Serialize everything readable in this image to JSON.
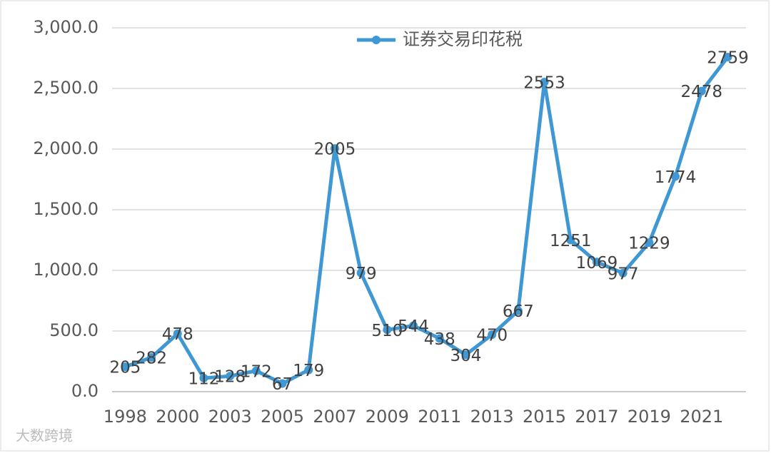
{
  "chart_data": {
    "type": "line",
    "categories": [
      "1998",
      null,
      "2000",
      null,
      "2003",
      null,
      "2005",
      null,
      "2007",
      null,
      "2009",
      null,
      "2011",
      null,
      "2013",
      null,
      "2015",
      null,
      "2017",
      null,
      "2019",
      null,
      "2021",
      null
    ],
    "series": [
      {
        "name": "证券交易印花税",
        "color": "#3f97d4",
        "values": [
          205,
          282,
          478,
          112,
          128,
          172,
          67,
          179,
          2005,
          979,
          510,
          544,
          438,
          304,
          470,
          667,
          2553,
          1251,
          1069,
          977,
          1229,
          1774,
          2478,
          2759
        ]
      }
    ],
    "ylim": [
      0,
      3000
    ],
    "yticks": [
      {
        "value": 0,
        "label": "0.0"
      },
      {
        "value": 500,
        "label": "500.0"
      },
      {
        "value": 1000,
        "label": "1,000.0"
      },
      {
        "value": 1500,
        "label": "1,500.0"
      },
      {
        "value": 2000,
        "label": "2,000.0"
      },
      {
        "value": 2500,
        "label": "2,500.0"
      },
      {
        "value": 3000,
        "label": "3,000.0"
      }
    ],
    "grid": true,
    "legend": "top",
    "watermark": "大数跨境"
  }
}
